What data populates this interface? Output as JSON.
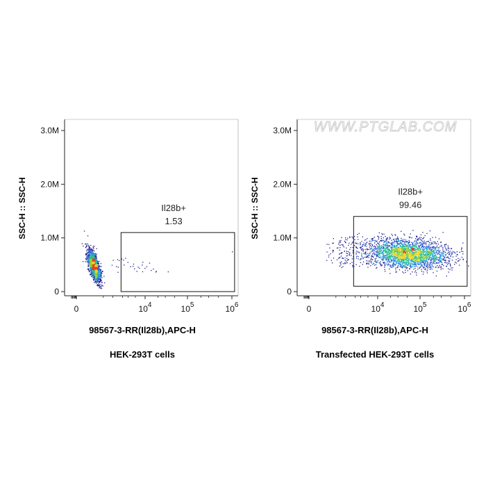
{
  "watermark": "WWW.PTGLAB.COM",
  "chart_data": [
    {
      "type": "scatter",
      "caption": "HEK-293T cells",
      "xlabel": "98567-3-RR(Il28b),APC-H",
      "ylabel": "SSC-H :: SSC-H",
      "xscale": "biexponential",
      "y_ticks": [
        "0",
        "1.0M",
        "2.0M",
        "3.0M"
      ],
      "y_tick_values": [
        0,
        1000000,
        2000000,
        3000000
      ],
      "ylim": [
        0,
        3200000
      ],
      "x_ticks": [
        {
          "label": "0",
          "value": 0
        },
        {
          "label": "10",
          "exp": "4",
          "value": 10000
        },
        {
          "label": "10",
          "exp": "5",
          "value": 100000
        },
        {
          "label": "10",
          "exp": "6",
          "value": 1000000
        }
      ],
      "gate": {
        "name": "Il28b+",
        "percent": "1.53",
        "x_range": [
          1800,
          1150000
        ],
        "y_range": [
          0,
          1100000
        ]
      },
      "populations": [
        {
          "description": "main cluster",
          "x_center": 300,
          "y_center": 500000,
          "n": 1600
        }
      ]
    },
    {
      "type": "scatter",
      "caption": "Transfected HEK-293T cells",
      "xlabel": "98567-3-RR(Il28b),APC-H",
      "ylabel": "SSC-H :: SSC-H",
      "xscale": "biexponential",
      "y_ticks": [
        "0",
        "1.0M",
        "2.0M",
        "3.0M"
      ],
      "y_tick_values": [
        0,
        1000000,
        2000000,
        3000000
      ],
      "ylim": [
        0,
        3200000
      ],
      "x_ticks": [
        {
          "label": "0",
          "value": 0
        },
        {
          "label": "10",
          "exp": "4",
          "value": 10000
        },
        {
          "label": "10",
          "exp": "5",
          "value": 100000
        },
        {
          "label": "10",
          "exp": "6",
          "value": 1000000
        }
      ],
      "gate": {
        "name": "Il28b+",
        "percent": "99.46",
        "x_range": [
          1800,
          1150000
        ],
        "y_range": [
          100000,
          1400000
        ]
      },
      "populations": [
        {
          "description": "positive cluster",
          "x_center": 50000,
          "y_center": 750000,
          "n": 2600
        }
      ]
    }
  ]
}
